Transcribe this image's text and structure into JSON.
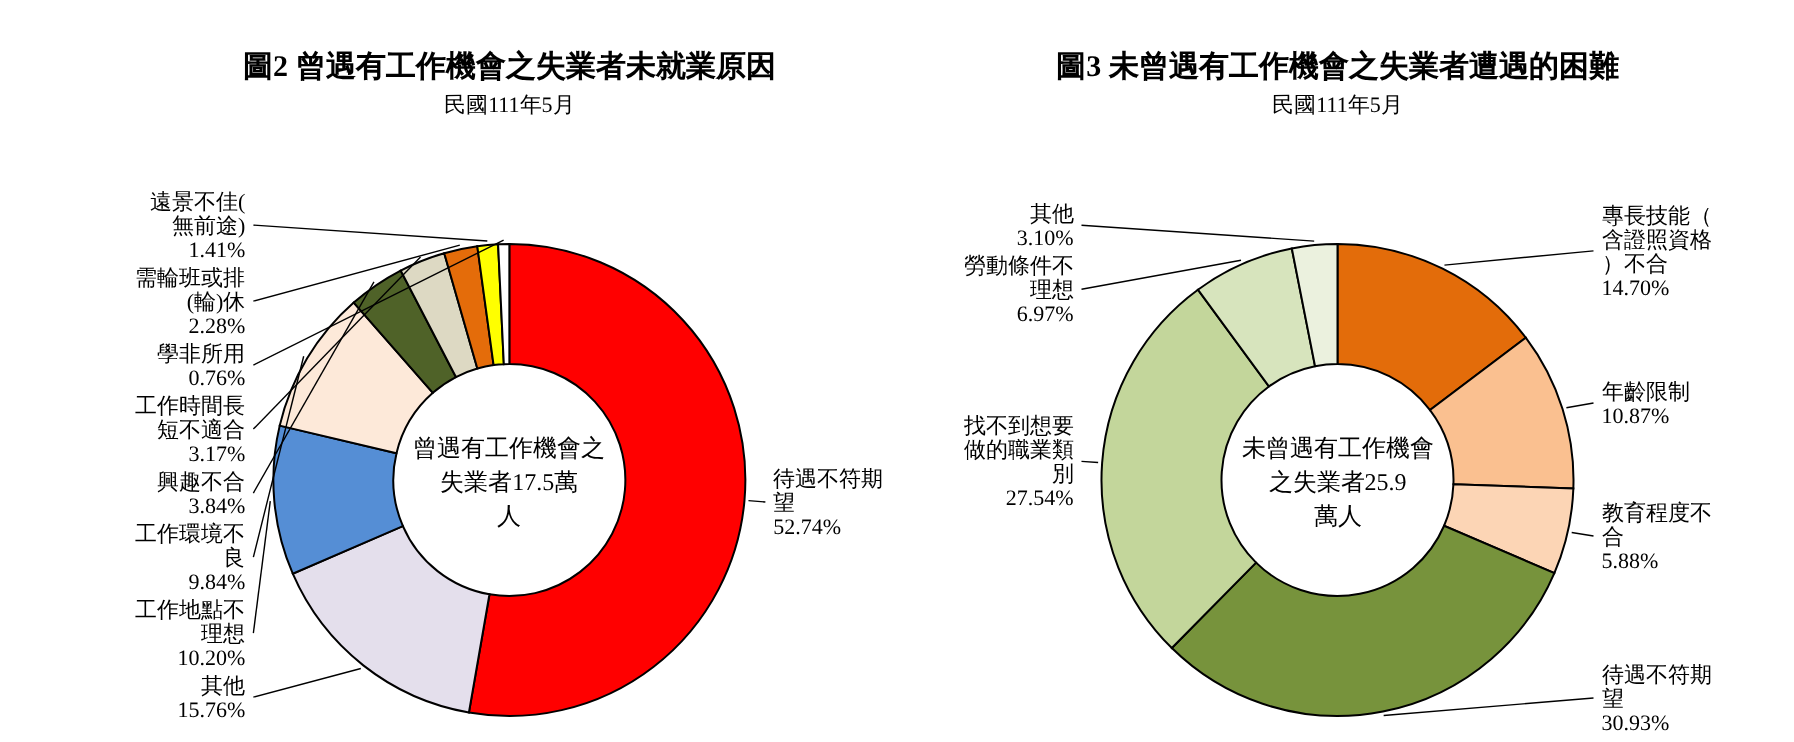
{
  "chart_data": [
    {
      "type": "donut",
      "title": "圖2 曾遇有工作機會之失業者未就業原因",
      "subtitle": "民國111年5月",
      "categories": [
        "待遇不符期望",
        "其他",
        "工作地點不理想",
        "工作環境不良",
        "興趣不合",
        "工作時間長短不適合",
        "需輪班或排(輪)休",
        "遠景不佳(無前途)",
        "學非所用"
      ],
      "values": [
        52.74,
        15.76,
        10.2,
        9.84,
        3.84,
        3.17,
        2.28,
        1.41,
        0.76
      ],
      "value_labels": [
        "52.74%",
        "15.76%",
        "10.20%",
        "9.84%",
        "3.84%",
        "3.17%",
        "2.28%",
        "1.41%",
        "0.76%"
      ],
      "colors": [
        "#ff0000",
        "#e4dfec",
        "#558ed5",
        "#fde9d9",
        "#4f6228",
        "#ddd9c3",
        "#e46c0a",
        "#ffff00",
        "#ffffff"
      ],
      "annotations": [
        "曾遇有工作機會之失業者17.5萬人"
      ]
    },
    {
      "type": "donut",
      "title": "圖3 未曾遇有工作機會之失業者遭遇的困難",
      "subtitle": "民國111年5月",
      "categories": [
        "專長技能（含證照資格）不合",
        "年齡限制",
        "教育程度不合",
        "待遇不符期望",
        "找不到想要做的職業類別",
        "勞動條件不理想",
        "其他"
      ],
      "values": [
        14.7,
        10.87,
        5.88,
        30.93,
        27.54,
        6.97,
        3.1
      ],
      "value_labels": [
        "14.70%",
        "10.87%",
        "5.88%",
        "30.93%",
        "27.54%",
        "6.97%",
        "3.10%"
      ],
      "colors": [
        "#e36c0a",
        "#fac090",
        "#fcd5b5",
        "#77933c",
        "#c3d69b",
        "#d7e4bd",
        "#ebf1de"
      ],
      "annotations": [
        "未曾遇有工作機會之失業者25.9萬人"
      ]
    }
  ]
}
